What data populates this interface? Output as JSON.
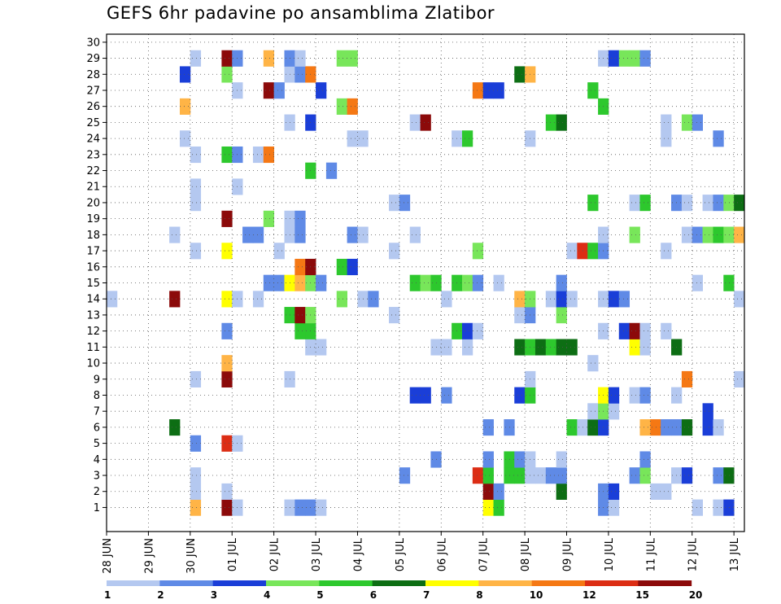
{
  "title": "GEFS 6hr padavine po ansamblima Zlatibor",
  "chart_data": {
    "type": "heatmap",
    "title": "GEFS 6hr padavine po ansamblima Zlatibor",
    "x_tick_labels": [
      "28 JUN",
      "29 JUN",
      "30 JUN",
      "01 JUL",
      "02 JUL",
      "03 JUL",
      "04 JUL",
      "05 JUL",
      "06 JUL",
      "07 JUL",
      "08 JUL",
      "09 JUL",
      "10 JUL",
      "11 JUL",
      "12 JUL",
      "13 JUL"
    ],
    "y_tick_labels": [
      "1",
      "2",
      "3",
      "4",
      "5",
      "6",
      "7",
      "8",
      "9",
      "10",
      "11",
      "12",
      "13",
      "14",
      "15",
      "16",
      "17",
      "18",
      "19",
      "20",
      "21",
      "22",
      "23",
      "24",
      "25",
      "26",
      "27",
      "28",
      "29",
      "30"
    ],
    "x_unit": "6-hour step",
    "n_steps": 61,
    "members": 30,
    "grid": true,
    "colorbar": {
      "colors": [
        "#b4c8f0",
        "#5f8ae6",
        "#1a3ed8",
        "#78e65a",
        "#2dc82d",
        "#0d6e14",
        "#ffff00",
        "#ffb446",
        "#f57814",
        "#dc2d14",
        "#8c0a0a"
      ],
      "tick_labels": [
        "1",
        "2",
        "3",
        "4",
        "5",
        "6",
        "7",
        "8",
        "10",
        "12",
        "15",
        "20"
      ]
    },
    "cells": [
      [
        1,
        8,
        7
      ],
      [
        1,
        11,
        10
      ],
      [
        1,
        12,
        0
      ],
      [
        1,
        17,
        0
      ],
      [
        1,
        18,
        1
      ],
      [
        1,
        19,
        1
      ],
      [
        1,
        20,
        0
      ],
      [
        1,
        36,
        6
      ],
      [
        1,
        37,
        4
      ],
      [
        1,
        47,
        1
      ],
      [
        1,
        48,
        0
      ],
      [
        1,
        56,
        0
      ],
      [
        1,
        58,
        0
      ],
      [
        1,
        59,
        2
      ],
      [
        2,
        8,
        0
      ],
      [
        2,
        11,
        0
      ],
      [
        2,
        36,
        10
      ],
      [
        2,
        37,
        1
      ],
      [
        2,
        43,
        5
      ],
      [
        2,
        47,
        1
      ],
      [
        2,
        48,
        2
      ],
      [
        2,
        52,
        0
      ],
      [
        2,
        53,
        0
      ],
      [
        3,
        8,
        0
      ],
      [
        3,
        28,
        1
      ],
      [
        3,
        35,
        9
      ],
      [
        3,
        36,
        4
      ],
      [
        3,
        38,
        4
      ],
      [
        3,
        39,
        4
      ],
      [
        3,
        40,
        0
      ],
      [
        3,
        41,
        0
      ],
      [
        3,
        42,
        1
      ],
      [
        3,
        43,
        1
      ],
      [
        3,
        50,
        1
      ],
      [
        3,
        51,
        3
      ],
      [
        3,
        54,
        0
      ],
      [
        3,
        55,
        2
      ],
      [
        3,
        58,
        1
      ],
      [
        3,
        59,
        5
      ],
      [
        4,
        31,
        1
      ],
      [
        4,
        36,
        1
      ],
      [
        4,
        38,
        4
      ],
      [
        4,
        39,
        1
      ],
      [
        4,
        40,
        0
      ],
      [
        4,
        43,
        0
      ],
      [
        4,
        51,
        1
      ],
      [
        5,
        8,
        1
      ],
      [
        5,
        11,
        9
      ],
      [
        5,
        12,
        0
      ],
      [
        6,
        6,
        5
      ],
      [
        6,
        36,
        1
      ],
      [
        6,
        38,
        1
      ],
      [
        6,
        44,
        4
      ],
      [
        6,
        45,
        0
      ],
      [
        6,
        46,
        5
      ],
      [
        6,
        47,
        2
      ],
      [
        6,
        51,
        7
      ],
      [
        6,
        52,
        8
      ],
      [
        6,
        53,
        1
      ],
      [
        6,
        54,
        1
      ],
      [
        6,
        55,
        5
      ],
      [
        6,
        57,
        2
      ],
      [
        6,
        58,
        0
      ],
      [
        7,
        46,
        0
      ],
      [
        7,
        47,
        3
      ],
      [
        7,
        48,
        0
      ],
      [
        7,
        57,
        2
      ],
      [
        8,
        29,
        2
      ],
      [
        8,
        30,
        2
      ],
      [
        8,
        32,
        1
      ],
      [
        8,
        39,
        2
      ],
      [
        8,
        40,
        4
      ],
      [
        8,
        47,
        6
      ],
      [
        8,
        48,
        2
      ],
      [
        8,
        50,
        0
      ],
      [
        8,
        51,
        1
      ],
      [
        8,
        54,
        0
      ],
      [
        9,
        8,
        0
      ],
      [
        9,
        11,
        10
      ],
      [
        9,
        17,
        0
      ],
      [
        9,
        40,
        0
      ],
      [
        9,
        55,
        8
      ],
      [
        9,
        60,
        0
      ],
      [
        10,
        11,
        7
      ],
      [
        10,
        46,
        0
      ],
      [
        11,
        19,
        0
      ],
      [
        11,
        20,
        0
      ],
      [
        11,
        31,
        0
      ],
      [
        11,
        32,
        0
      ],
      [
        11,
        34,
        0
      ],
      [
        11,
        39,
        5
      ],
      [
        11,
        40,
        4
      ],
      [
        11,
        41,
        5
      ],
      [
        11,
        42,
        4
      ],
      [
        11,
        43,
        5
      ],
      [
        11,
        44,
        5
      ],
      [
        11,
        50,
        6
      ],
      [
        11,
        51,
        0
      ],
      [
        11,
        54,
        5
      ],
      [
        12,
        11,
        1
      ],
      [
        12,
        18,
        4
      ],
      [
        12,
        19,
        4
      ],
      [
        12,
        33,
        4
      ],
      [
        12,
        34,
        2
      ],
      [
        12,
        35,
        0
      ],
      [
        12,
        47,
        0
      ],
      [
        12,
        49,
        2
      ],
      [
        12,
        50,
        10
      ],
      [
        12,
        51,
        0
      ],
      [
        12,
        53,
        0
      ],
      [
        13,
        17,
        4
      ],
      [
        13,
        18,
        10
      ],
      [
        13,
        19,
        3
      ],
      [
        13,
        27,
        0
      ],
      [
        13,
        39,
        0
      ],
      [
        13,
        40,
        1
      ],
      [
        13,
        43,
        3
      ],
      [
        14,
        0,
        0
      ],
      [
        14,
        6,
        10
      ],
      [
        14,
        11,
        6
      ],
      [
        14,
        12,
        0
      ],
      [
        14,
        14,
        0
      ],
      [
        14,
        22,
        3
      ],
      [
        14,
        24,
        0
      ],
      [
        14,
        25,
        1
      ],
      [
        14,
        32,
        0
      ],
      [
        14,
        39,
        7
      ],
      [
        14,
        40,
        3
      ],
      [
        14,
        42,
        0
      ],
      [
        14,
        43,
        2
      ],
      [
        14,
        44,
        0
      ],
      [
        14,
        47,
        0
      ],
      [
        14,
        48,
        2
      ],
      [
        14,
        49,
        1
      ],
      [
        14,
        60,
        0
      ],
      [
        15,
        15,
        1
      ],
      [
        15,
        16,
        1
      ],
      [
        15,
        17,
        6
      ],
      [
        15,
        18,
        7
      ],
      [
        15,
        19,
        3
      ],
      [
        15,
        20,
        1
      ],
      [
        15,
        29,
        4
      ],
      [
        15,
        30,
        3
      ],
      [
        15,
        31,
        4
      ],
      [
        15,
        33,
        4
      ],
      [
        15,
        34,
        3
      ],
      [
        15,
        35,
        1
      ],
      [
        15,
        37,
        0
      ],
      [
        15,
        43,
        1
      ],
      [
        15,
        56,
        0
      ],
      [
        15,
        59,
        4
      ],
      [
        16,
        18,
        8
      ],
      [
        16,
        19,
        10
      ],
      [
        16,
        22,
        4
      ],
      [
        16,
        23,
        2
      ],
      [
        17,
        8,
        0
      ],
      [
        17,
        11,
        6
      ],
      [
        17,
        16,
        0
      ],
      [
        17,
        27,
        0
      ],
      [
        17,
        35,
        3
      ],
      [
        17,
        44,
        0
      ],
      [
        17,
        45,
        9
      ],
      [
        17,
        46,
        4
      ],
      [
        17,
        47,
        1
      ],
      [
        17,
        53,
        0
      ],
      [
        18,
        6,
        0
      ],
      [
        18,
        13,
        1
      ],
      [
        18,
        14,
        1
      ],
      [
        18,
        17,
        0
      ],
      [
        18,
        18,
        1
      ],
      [
        18,
        23,
        1
      ],
      [
        18,
        24,
        0
      ],
      [
        18,
        29,
        0
      ],
      [
        18,
        47,
        0
      ],
      [
        18,
        50,
        3
      ],
      [
        18,
        55,
        0
      ],
      [
        18,
        56,
        1
      ],
      [
        18,
        57,
        3
      ],
      [
        18,
        58,
        4
      ],
      [
        18,
        59,
        3
      ],
      [
        18,
        60,
        7
      ],
      [
        19,
        11,
        10
      ],
      [
        19,
        15,
        3
      ],
      [
        19,
        17,
        0
      ],
      [
        19,
        18,
        1
      ],
      [
        20,
        8,
        0
      ],
      [
        20,
        27,
        0
      ],
      [
        20,
        28,
        1
      ],
      [
        20,
        46,
        4
      ],
      [
        20,
        50,
        0
      ],
      [
        20,
        51,
        4
      ],
      [
        20,
        54,
        1
      ],
      [
        20,
        55,
        0
      ],
      [
        20,
        57,
        0
      ],
      [
        20,
        58,
        1
      ],
      [
        20,
        59,
        3
      ],
      [
        20,
        60,
        5
      ],
      [
        21,
        8,
        0
      ],
      [
        21,
        12,
        0
      ],
      [
        22,
        19,
        4
      ],
      [
        22,
        21,
        1
      ],
      [
        23,
        8,
        0
      ],
      [
        23,
        11,
        4
      ],
      [
        23,
        12,
        1
      ],
      [
        23,
        14,
        0
      ],
      [
        23,
        15,
        8
      ],
      [
        24,
        7,
        0
      ],
      [
        24,
        23,
        0
      ],
      [
        24,
        24,
        0
      ],
      [
        24,
        33,
        0
      ],
      [
        24,
        34,
        4
      ],
      [
        24,
        40,
        0
      ],
      [
        24,
        53,
        0
      ],
      [
        24,
        58,
        1
      ],
      [
        25,
        17,
        0
      ],
      [
        25,
        19,
        2
      ],
      [
        25,
        29,
        0
      ],
      [
        25,
        30,
        10
      ],
      [
        25,
        42,
        4
      ],
      [
        25,
        43,
        5
      ],
      [
        25,
        53,
        0
      ],
      [
        25,
        55,
        3
      ],
      [
        25,
        56,
        1
      ],
      [
        26,
        7,
        7
      ],
      [
        26,
        22,
        3
      ],
      [
        26,
        23,
        8
      ],
      [
        26,
        47,
        4
      ],
      [
        27,
        12,
        0
      ],
      [
        27,
        15,
        10
      ],
      [
        27,
        16,
        1
      ],
      [
        27,
        20,
        2
      ],
      [
        27,
        35,
        8
      ],
      [
        27,
        36,
        2
      ],
      [
        27,
        37,
        2
      ],
      [
        27,
        46,
        4
      ],
      [
        28,
        7,
        2
      ],
      [
        28,
        11,
        3
      ],
      [
        28,
        17,
        0
      ],
      [
        28,
        18,
        1
      ],
      [
        28,
        19,
        8
      ],
      [
        28,
        39,
        5
      ],
      [
        28,
        40,
        7
      ],
      [
        29,
        8,
        0
      ],
      [
        29,
        11,
        10
      ],
      [
        29,
        12,
        1
      ],
      [
        29,
        15,
        7
      ],
      [
        29,
        17,
        1
      ],
      [
        29,
        18,
        0
      ],
      [
        29,
        22,
        3
      ],
      [
        29,
        23,
        3
      ],
      [
        29,
        47,
        0
      ],
      [
        29,
        48,
        2
      ],
      [
        29,
        49,
        3
      ],
      [
        29,
        50,
        3
      ],
      [
        29,
        51,
        1
      ]
    ]
  }
}
